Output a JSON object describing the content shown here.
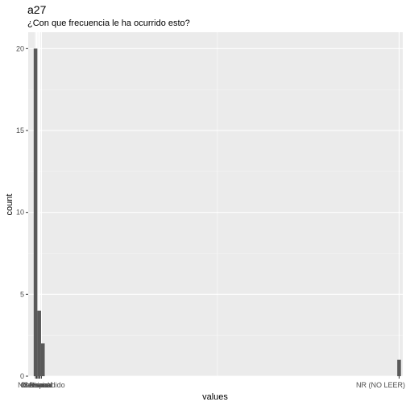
{
  "chart_data": {
    "type": "bar",
    "title": "a27",
    "subtitle": "¿Con que frecuencia le ha ocurrido esto?",
    "xlabel": "values",
    "ylabel": "count",
    "ylim": [
      0,
      21
    ],
    "y_ticks": [
      0,
      5,
      10,
      15,
      20
    ],
    "grid": true,
    "x_tick_labels": [
      {
        "label": "Mensual",
        "pos": 1
      },
      {
        "label": "Ocasional",
        "pos": 1.3
      },
      {
        "label": "Semanal",
        "pos": 1.6
      },
      {
        "label": "Diario",
        "pos": 1.9
      },
      {
        "label": "Nunca",
        "pos": 2.2
      },
      {
        "label": "No respondido",
        "pos": 2.6
      },
      {
        "label": "NR (NO LEER)",
        "pos": 100
      }
    ],
    "xlim": [
      -1,
      101
    ],
    "bars": [
      {
        "x": 1,
        "value": 20
      },
      {
        "x": 2,
        "value": 4
      },
      {
        "x": 3,
        "value": 2
      },
      {
        "x": 100,
        "value": 1
      }
    ]
  }
}
